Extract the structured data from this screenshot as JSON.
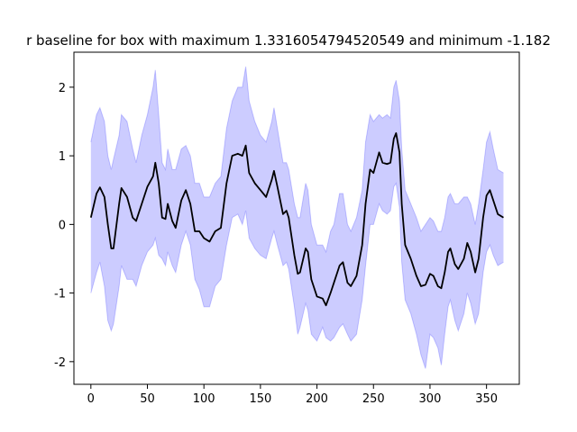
{
  "chart_data": {
    "type": "line",
    "title": "r baseline for box with maximum 1.3316054794520549 and minimum -1.182",
    "x": [
      0,
      5,
      8,
      12,
      15,
      18,
      20,
      25,
      27,
      32,
      37,
      40,
      45,
      50,
      55,
      57,
      60,
      63,
      66,
      68,
      72,
      75,
      80,
      84,
      88,
      92,
      96,
      100,
      105,
      110,
      115,
      120,
      125,
      130,
      134,
      137,
      140,
      145,
      150,
      155,
      160,
      162,
      165,
      170,
      173,
      175,
      180,
      183,
      185,
      190,
      192,
      195,
      200,
      205,
      208,
      212,
      215,
      220,
      223,
      227,
      230,
      235,
      240,
      243,
      247,
      250,
      255,
      258,
      262,
      265,
      268,
      270,
      273,
      275,
      278,
      283,
      288,
      292,
      296,
      300,
      303,
      307,
      310,
      313,
      316,
      318,
      322,
      325,
      330,
      333,
      336,
      340,
      343,
      347,
      350,
      353,
      356,
      360,
      365
    ],
    "series": [
      {
        "color": "#000000",
        "values": [
          0.1,
          0.45,
          0.54,
          0.4,
          0,
          -0.35,
          -0.35,
          0.3,
          0.53,
          0.4,
          0.1,
          0.05,
          0.3,
          0.55,
          0.7,
          0.9,
          0.6,
          0.1,
          0.08,
          0.3,
          0.05,
          -0.05,
          0.35,
          0.5,
          0.3,
          -0.1,
          -0.1,
          -0.2,
          -0.25,
          -0.1,
          -0.05,
          0.6,
          1.0,
          1.03,
          1.0,
          1.15,
          0.75,
          0.6,
          0.5,
          0.4,
          0.65,
          0.78,
          0.55,
          0.15,
          0.2,
          0.1,
          -0.45,
          -0.72,
          -0.7,
          -0.35,
          -0.4,
          -0.8,
          -1.05,
          -1.08,
          -1.18,
          -1.0,
          -0.85,
          -0.6,
          -0.55,
          -0.85,
          -0.9,
          -0.75,
          -0.3,
          0.3,
          0.8,
          0.75,
          1.05,
          0.9,
          0.88,
          0.9,
          1.25,
          1.33,
          1.05,
          0.3,
          -0.3,
          -0.5,
          -0.75,
          -0.9,
          -0.88,
          -0.72,
          -0.75,
          -0.9,
          -0.93,
          -0.7,
          -0.4,
          -0.35,
          -0.58,
          -0.65,
          -0.5,
          -0.27,
          -0.4,
          -0.7,
          -0.5,
          0.1,
          0.42,
          0.5,
          0.35,
          0.15,
          0.1
        ]
      }
    ],
    "band": {
      "color": "#0000ff",
      "upper": [
        1.2,
        1.6,
        1.7,
        1.5,
        1.0,
        0.8,
        0.95,
        1.3,
        1.6,
        1.5,
        1.1,
        0.9,
        1.3,
        1.6,
        2.0,
        2.25,
        1.6,
        0.9,
        0.8,
        1.1,
        0.8,
        0.8,
        1.1,
        1.15,
        1.0,
        0.6,
        0.6,
        0.4,
        0.4,
        0.6,
        0.7,
        1.4,
        1.8,
        2.0,
        2.0,
        2.3,
        1.8,
        1.5,
        1.3,
        1.2,
        1.5,
        1.7,
        1.4,
        0.9,
        0.9,
        0.8,
        0.3,
        0.1,
        0.1,
        0.6,
        0.5,
        0.0,
        -0.3,
        -0.3,
        -0.4,
        -0.1,
        0.0,
        0.45,
        0.45,
        0.0,
        -0.1,
        0.1,
        0.5,
        1.2,
        1.6,
        1.5,
        1.6,
        1.55,
        1.6,
        1.55,
        2.0,
        2.1,
        1.8,
        1.1,
        0.5,
        0.3,
        0.1,
        -0.1,
        0.0,
        0.1,
        0.05,
        -0.1,
        -0.1,
        0.1,
        0.4,
        0.45,
        0.3,
        0.3,
        0.4,
        0.4,
        0.3,
        0.0,
        0.3,
        0.8,
        1.2,
        1.35,
        1.1,
        0.8,
        0.75
      ],
      "lower": [
        -1.0,
        -0.7,
        -0.55,
        -0.9,
        -1.4,
        -1.55,
        -1.45,
        -0.9,
        -0.6,
        -0.8,
        -0.8,
        -0.9,
        -0.6,
        -0.4,
        -0.3,
        -0.2,
        -0.45,
        -0.5,
        -0.6,
        -0.4,
        -0.6,
        -0.7,
        -0.3,
        -0.1,
        -0.3,
        -0.8,
        -0.95,
        -1.2,
        -1.2,
        -0.9,
        -0.8,
        -0.3,
        0.1,
        0.15,
        0.0,
        0.2,
        -0.2,
        -0.35,
        -0.45,
        -0.5,
        -0.2,
        -0.1,
        -0.3,
        -0.6,
        -0.55,
        -0.65,
        -1.2,
        -1.6,
        -1.5,
        -1.15,
        -1.25,
        -1.6,
        -1.7,
        -1.5,
        -1.65,
        -1.7,
        -1.65,
        -1.5,
        -1.45,
        -1.6,
        -1.7,
        -1.6,
        -1.1,
        -0.6,
        0.0,
        0.0,
        0.3,
        0.2,
        0.15,
        0.2,
        0.55,
        0.6,
        0.25,
        -0.55,
        -1.1,
        -1.3,
        -1.6,
        -1.9,
        -2.1,
        -1.6,
        -1.65,
        -1.8,
        -2.05,
        -1.6,
        -1.2,
        -1.1,
        -1.4,
        -1.55,
        -1.3,
        -1.0,
        -1.15,
        -1.45,
        -1.3,
        -0.7,
        -0.4,
        -0.3,
        -0.45,
        -0.6,
        -0.55
      ]
    },
    "xlim": [
      -15,
      379
    ],
    "ylim": [
      -2.33,
      2.51
    ],
    "xticks": [
      0,
      50,
      100,
      150,
      200,
      250,
      300,
      350
    ],
    "yticks": [
      -2,
      -1,
      0,
      1,
      2
    ],
    "grid": false
  }
}
